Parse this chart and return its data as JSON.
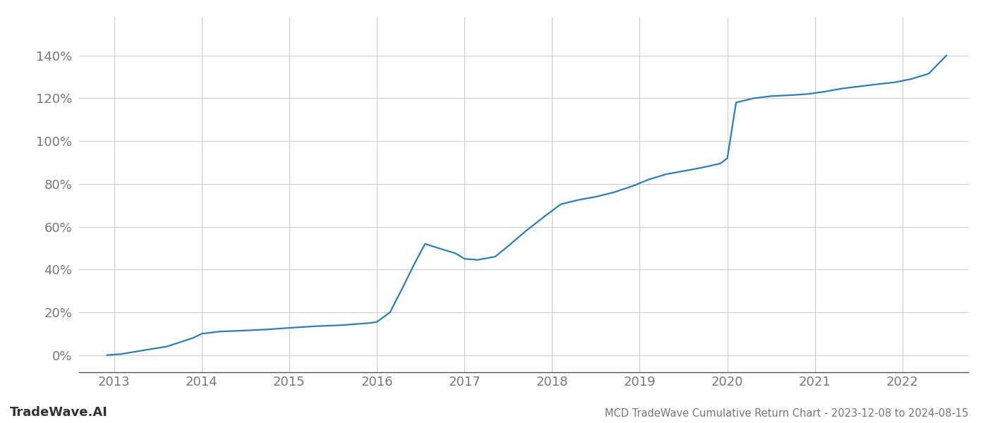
{
  "title": "MCD TradeWave Cumulative Return Chart - 2023-12-08 to 2024-08-15",
  "watermark": "TradeWave.AI",
  "line_color": "#2980b9",
  "background_color": "#ffffff",
  "grid_color": "#cccccc",
  "x_years": [
    2013,
    2014,
    2015,
    2016,
    2017,
    2018,
    2019,
    2020,
    2021,
    2022
  ],
  "data_x": [
    2012.92,
    2013.08,
    2013.3,
    2013.6,
    2013.9,
    2014.0,
    2014.2,
    2014.5,
    2014.75,
    2014.92,
    2015.1,
    2015.3,
    2015.6,
    2015.92,
    2016.0,
    2016.15,
    2016.3,
    2016.42,
    2016.55,
    2016.7,
    2016.9,
    2017.0,
    2017.15,
    2017.35,
    2017.5,
    2017.7,
    2017.92,
    2018.1,
    2018.3,
    2018.5,
    2018.7,
    2018.92,
    2019.1,
    2019.3,
    2019.5,
    2019.7,
    2019.92,
    2020.0,
    2020.1,
    2020.3,
    2020.5,
    2020.75,
    2020.92,
    2021.1,
    2021.3,
    2021.5,
    2021.7,
    2021.92,
    2022.1,
    2022.3,
    2022.5
  ],
  "data_y": [
    0.0,
    0.5,
    2.0,
    4.0,
    8.0,
    10.0,
    11.0,
    11.5,
    12.0,
    12.5,
    13.0,
    13.5,
    14.0,
    15.0,
    15.5,
    20.0,
    32.0,
    42.0,
    52.0,
    50.0,
    47.5,
    45.0,
    44.5,
    46.0,
    51.0,
    58.0,
    65.0,
    70.5,
    72.5,
    74.0,
    76.0,
    79.0,
    82.0,
    84.5,
    86.0,
    87.5,
    89.5,
    92.0,
    118.0,
    120.0,
    121.0,
    121.5,
    122.0,
    123.0,
    124.5,
    125.5,
    126.5,
    127.5,
    129.0,
    131.5,
    140.0
  ],
  "ylim": [
    -8,
    158
  ],
  "yticks": [
    0,
    20,
    40,
    60,
    80,
    100,
    120,
    140
  ],
  "xlim": [
    2012.6,
    2022.75
  ],
  "title_fontsize": 10.5,
  "tick_fontsize": 13,
  "watermark_fontsize": 13,
  "line_width": 1.6
}
